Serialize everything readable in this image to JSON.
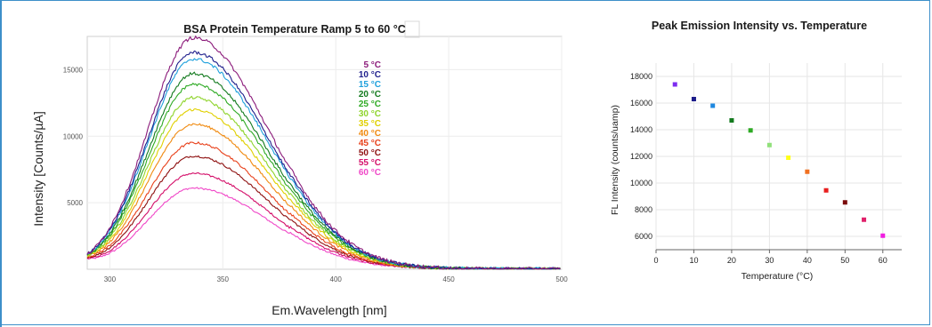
{
  "chart_data": [
    {
      "type": "line",
      "title": "BSA Protein Temperature Ramp 5 to 60 °C",
      "xlabel": "Em.Wavelength [nm]",
      "ylabel": "Intensity [Counts/µA]",
      "xlim": [
        290,
        500
      ],
      "ylim": [
        0,
        17500
      ],
      "xticks": [
        "300",
        "350",
        "400",
        "450",
        "500"
      ],
      "yticks": [
        "5000",
        "10000",
        "15000"
      ],
      "grid": true,
      "legend_position": "top-right",
      "series": [
        {
          "name": "5 °C",
          "color": "#8b1a7a",
          "peak": 17400
        },
        {
          "name": "10 °C",
          "color": "#1f1f8c",
          "peak": 16300
        },
        {
          "name": "15 °C",
          "color": "#1ea0dc",
          "peak": 15800
        },
        {
          "name": "20 °C",
          "color": "#137a1e",
          "peak": 14700
        },
        {
          "name": "25 °C",
          "color": "#2eaa24",
          "peak": 13900
        },
        {
          "name": "30 °C",
          "color": "#8fd42c",
          "peak": 12900
        },
        {
          "name": "35 °C",
          "color": "#e0d000",
          "peak": 12000
        },
        {
          "name": "40 °C",
          "color": "#f08a10",
          "peak": 10900
        },
        {
          "name": "45 °C",
          "color": "#e8401a",
          "peak": 9500
        },
        {
          "name": "50 °C",
          "color": "#8e1010",
          "peak": 8500
        },
        {
          "name": "55 °C",
          "color": "#d4106a",
          "peak": 7200
        },
        {
          "name": "60 °C",
          "color": "#f048c8",
          "peak": 6100
        }
      ],
      "peak_wavelength": 337,
      "baseline_at_290": [
        1100,
        1200,
        1150,
        1100,
        1050,
        1000,
        1050,
        1000,
        950,
        900,
        850,
        800
      ]
    },
    {
      "type": "scatter",
      "title": "Peak Emission Intensity vs. Temperature",
      "xlabel": "Temperature (°C)",
      "ylabel": "FL Intensity (counts/uamp)",
      "xlim": [
        0,
        65
      ],
      "ylim": [
        5000,
        19000
      ],
      "xticks": [
        "0",
        "10",
        "20",
        "30",
        "40",
        "50",
        "60"
      ],
      "yticks": [
        "6000",
        "8000",
        "10000",
        "12000",
        "14000",
        "16000",
        "18000"
      ],
      "grid": true,
      "x": [
        5,
        10,
        15,
        20,
        25,
        30,
        35,
        40,
        45,
        50,
        55,
        60
      ],
      "y": [
        17400,
        16300,
        15800,
        14700,
        13950,
        12850,
        11900,
        10850,
        9450,
        8550,
        7250,
        6050
      ],
      "colors": [
        "#7d2cf0",
        "#1c1c8a",
        "#1e88e0",
        "#137a1e",
        "#2eaa24",
        "#90e07a",
        "#ffff1a",
        "#f07020",
        "#e81e1e",
        "#7a0a0a",
        "#e0206a",
        "#f01ee0"
      ]
    }
  ]
}
